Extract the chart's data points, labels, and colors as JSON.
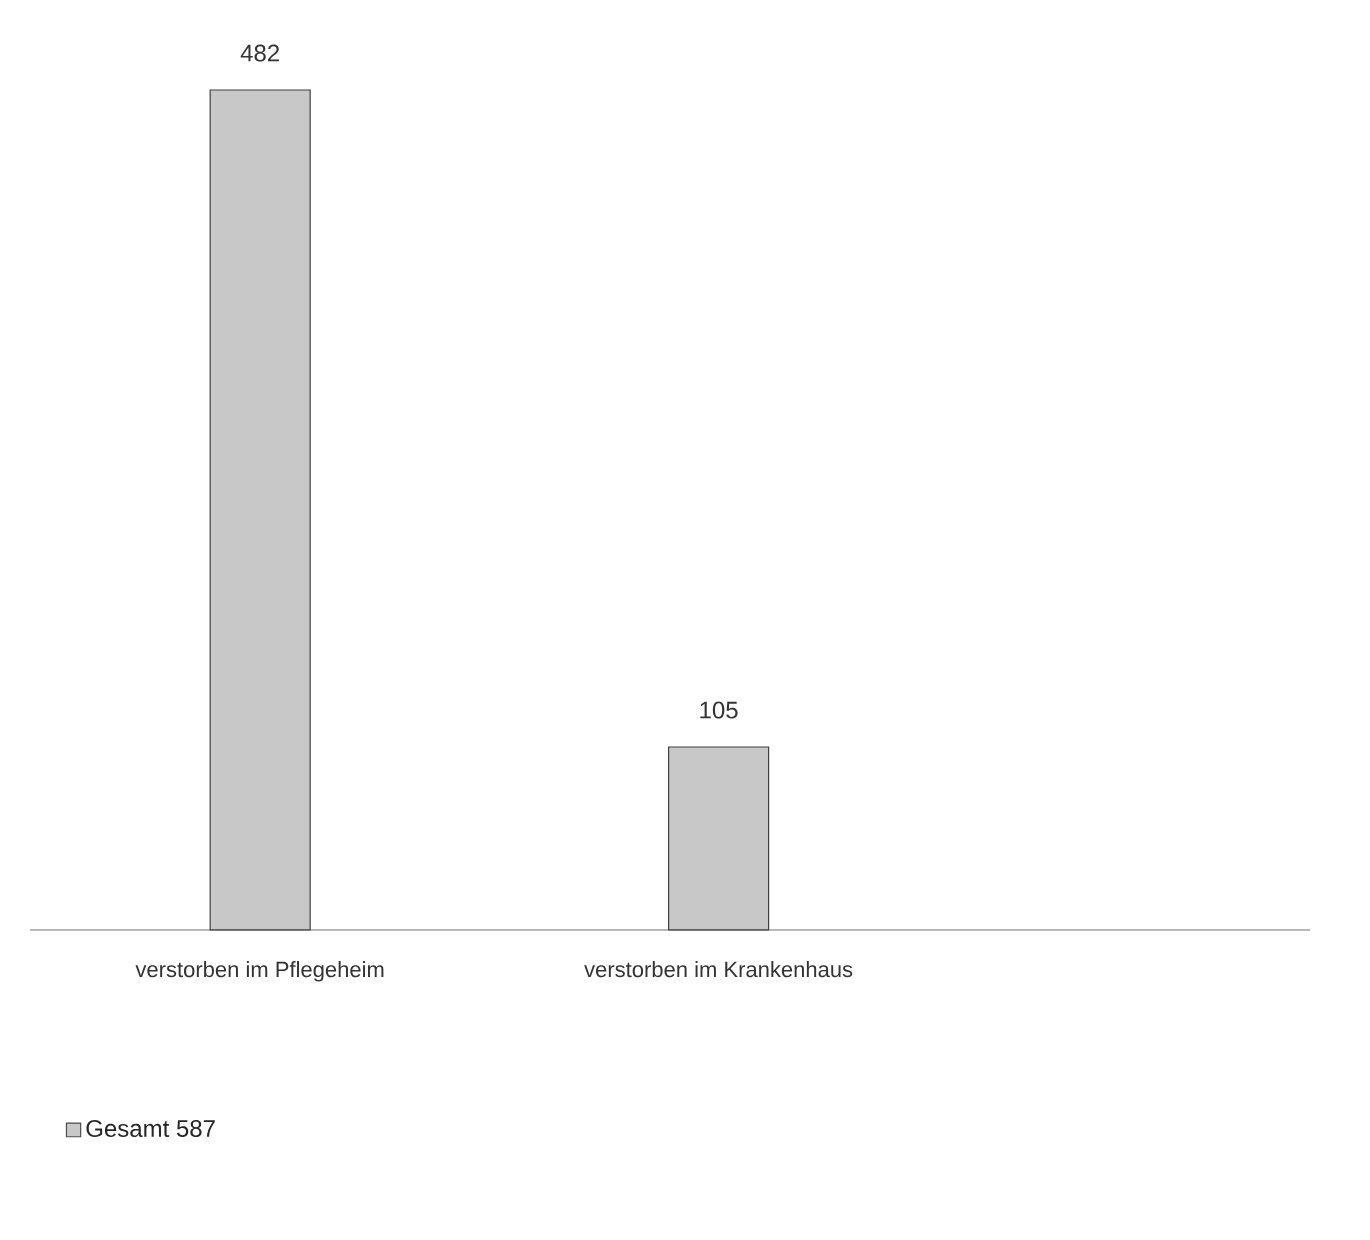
{
  "chart_data": {
    "type": "bar",
    "categories": [
      "verstorben im Pflegeheim",
      "verstorben im Krankenhaus"
    ],
    "series": [
      {
        "name": "Gesamt 587",
        "color": "#c8c8c8",
        "values": [
          482,
          105
        ]
      }
    ],
    "data_labels": true,
    "legend": "bottom"
  }
}
